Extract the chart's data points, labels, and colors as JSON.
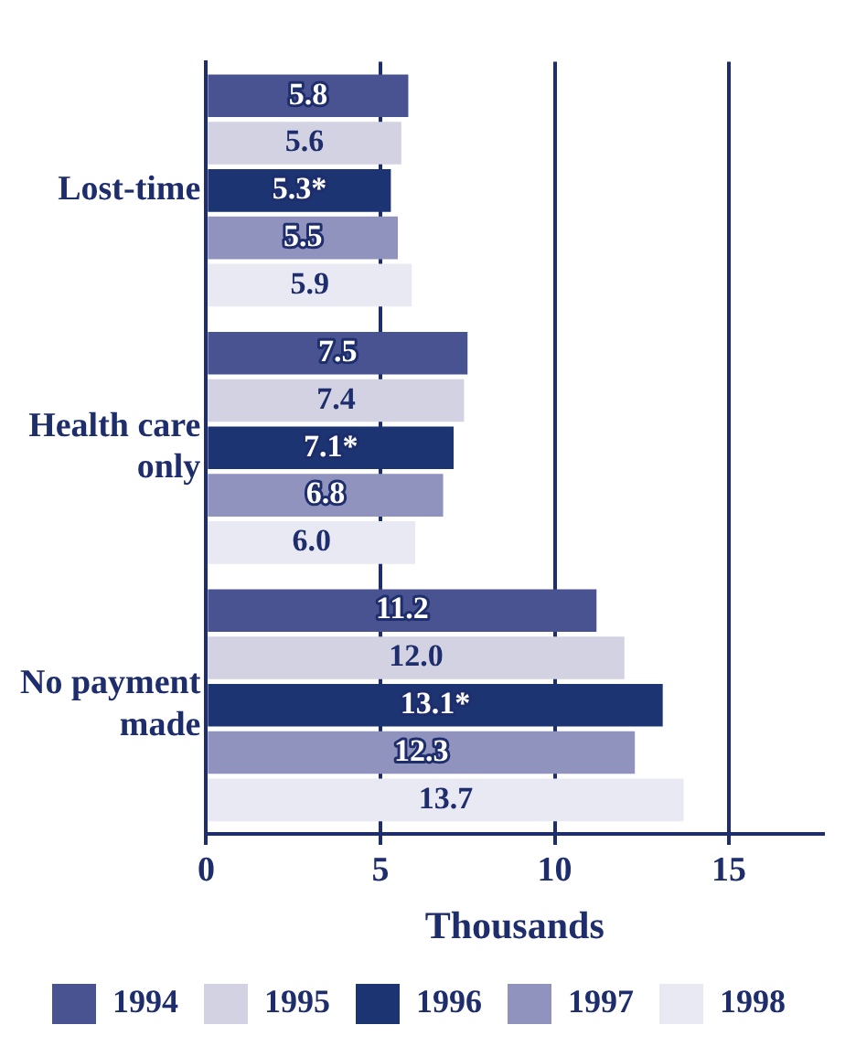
{
  "chart_data": {
    "type": "bar",
    "orientation": "horizontal",
    "xlabel": "Thousands",
    "categories": [
      "Lost-time",
      "Health care only",
      "No payment made"
    ],
    "series": [
      {
        "name": "1994",
        "color": "#4a5391",
        "values": [
          5.8,
          7.5,
          11.2
        ],
        "value_labels": [
          "5.8",
          "7.5",
          "11.2"
        ]
      },
      {
        "name": "1995",
        "color": "#d2d2e2",
        "values": [
          5.6,
          7.4,
          12.0
        ],
        "value_labels": [
          "5.6",
          "7.4",
          "12.0"
        ]
      },
      {
        "name": "1996",
        "color": "#1d3473",
        "values": [
          5.3,
          7.1,
          13.1
        ],
        "value_labels": [
          "5.3*",
          "7.1*",
          "13.1*"
        ]
      },
      {
        "name": "1997",
        "color": "#9093bd",
        "values": [
          5.5,
          6.8,
          12.3
        ],
        "value_labels": [
          "5.5",
          "6.8",
          "12.3"
        ]
      },
      {
        "name": "1998",
        "color": "#e9e9f3",
        "values": [
          5.9,
          6.0,
          13.7
        ],
        "value_labels": [
          "5.9",
          "6.0",
          "13.7"
        ]
      }
    ],
    "xlim": [
      0,
      17.7
    ],
    "xticks": [
      0,
      5,
      10,
      15
    ],
    "grid": "x",
    "legend": "bottom"
  }
}
